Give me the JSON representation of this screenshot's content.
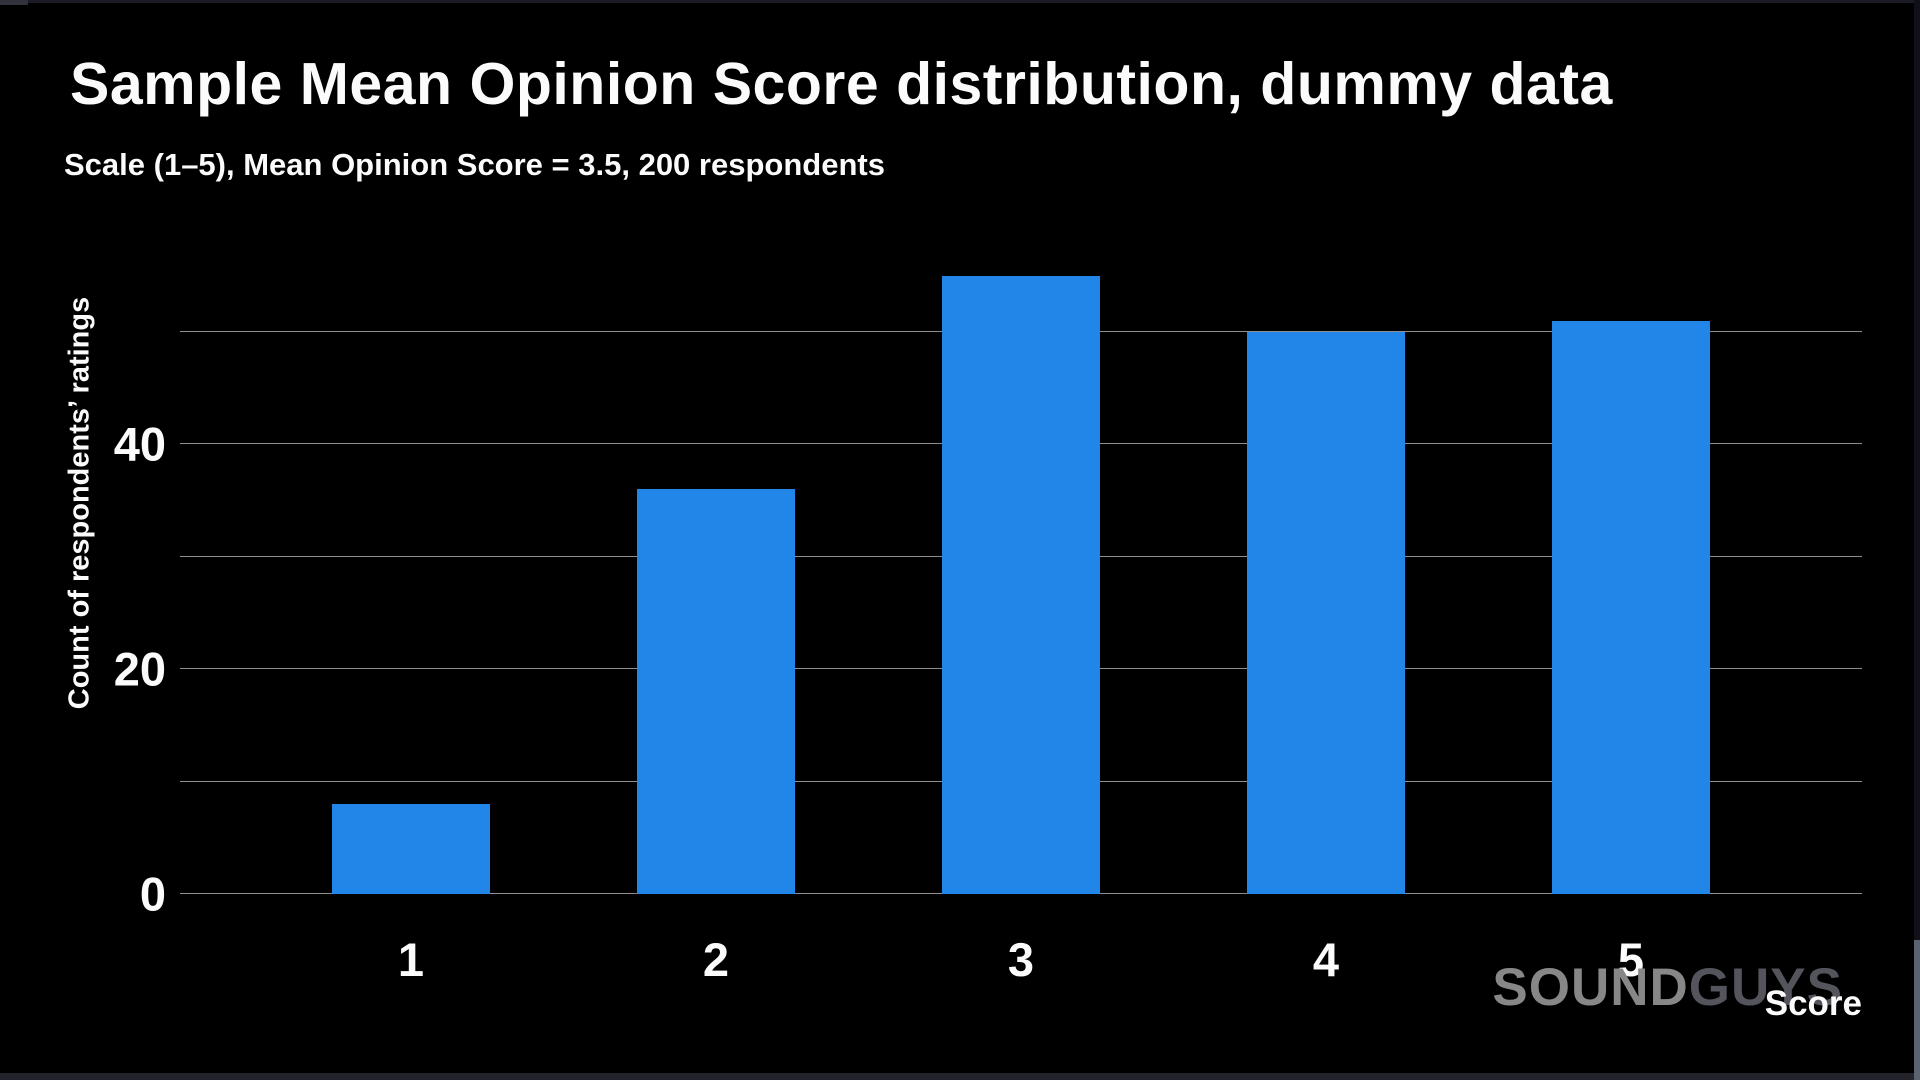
{
  "chart_data": {
    "type": "bar",
    "title": "Sample Mean Opinion Score distribution, dummy data",
    "subtitle": "Scale (1–5), Mean Opinion Score = 3.5, 200 respondents",
    "categories": [
      "1",
      "2",
      "3",
      "4",
      "5"
    ],
    "values": [
      8,
      36,
      55,
      50,
      51
    ],
    "xlabel": "Score",
    "ylabel": "Count of respondents’ ratings",
    "ytick_values": [
      0,
      20,
      40
    ],
    "gridline_values": [
      0,
      10,
      20,
      30,
      40,
      50
    ],
    "ylim": [
      0,
      62.2
    ],
    "grid": true,
    "legend": false,
    "background": "#000000",
    "colors": {
      "bar": "#2285e8",
      "gridline": "#8e8e8e",
      "text": "#fbfbfb"
    }
  },
  "watermark": {
    "part1": "SOUND",
    "part2": "GUYS",
    "color1": "#878787",
    "color2": "#54545c"
  }
}
